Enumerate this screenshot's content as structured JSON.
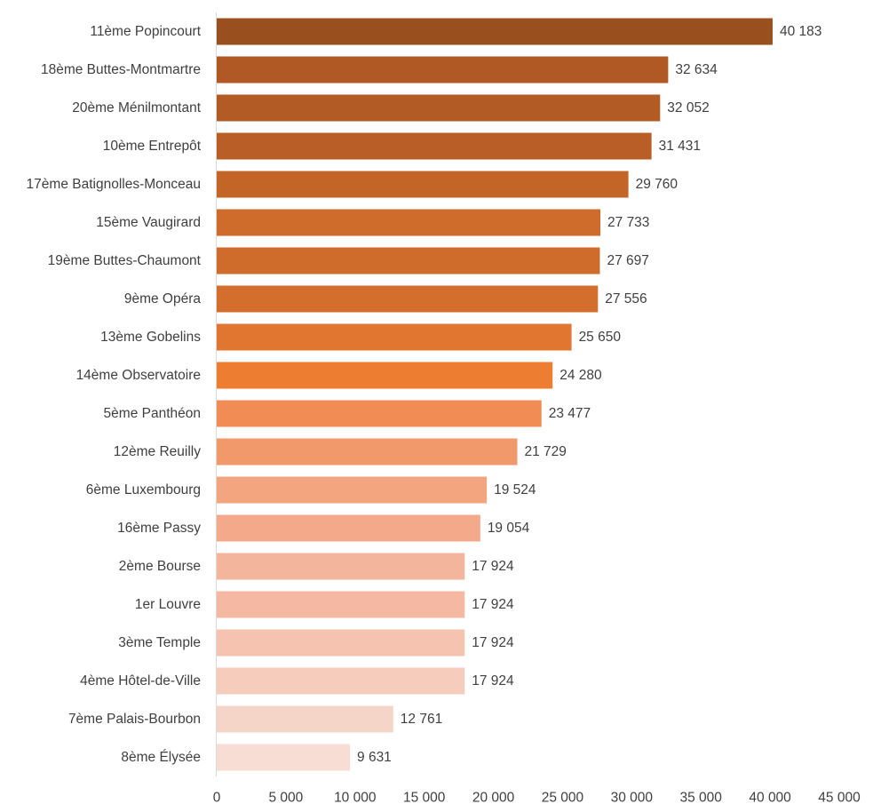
{
  "chart_data": {
    "type": "bar",
    "orientation": "horizontal",
    "title": "",
    "xlabel": "",
    "ylabel": "",
    "xlim": [
      0,
      45000
    ],
    "x_ticks": [
      0,
      5000,
      10000,
      15000,
      20000,
      25000,
      30000,
      35000,
      40000,
      45000
    ],
    "x_tick_labels": [
      "0",
      "5 000",
      "10 000",
      "15 000",
      "20 000",
      "25 000",
      "30 000",
      "35 000",
      "40 000",
      "45 000"
    ],
    "grid": false,
    "legend": "none",
    "categories": [
      "11ème Popincourt",
      "18ème Buttes-Montmartre",
      "20ème Ménilmontant",
      "10ème Entrepôt",
      "17ème Batignolles-Monceau",
      "15ème Vaugirard",
      "19ème Buttes-Chaumont",
      "9ème Opéra",
      "13ème Gobelins",
      "14ème Observatoire",
      "5ème Panthéon",
      "12ème Reuilly",
      "6ème Luxembourg",
      "16ème Passy",
      "2ème Bourse",
      "1er Louvre",
      "3ème Temple",
      "4ème Hôtel-de-Ville",
      "7ème Palais-Bourbon",
      "8ème Élysée"
    ],
    "values": [
      40183,
      32634,
      32052,
      31431,
      29760,
      27733,
      27697,
      27556,
      25650,
      24280,
      23477,
      21729,
      19524,
      19054,
      17924,
      17924,
      17924,
      17924,
      12761,
      9631
    ],
    "value_labels": [
      "40 183",
      "32 634",
      "32 052",
      "31 431",
      "29 760",
      "27 733",
      "27 697",
      "27 556",
      "25 650",
      "24 280",
      "23 477",
      "21 729",
      "19 524",
      "19 054",
      "17 924",
      "17 924",
      "17 924",
      "17 924",
      "12 761",
      "9 631"
    ],
    "colors": [
      "#9a4f1e",
      "#b05924",
      "#b35b25",
      "#b85e26",
      "#c46528",
      "#cf6b2b",
      "#d06c2b",
      "#d46e2c",
      "#e17630",
      "#ed7d31",
      "#f08c54",
      "#f2996b",
      "#f3a580",
      "#f3a98a",
      "#f4b59d",
      "#f5b8a2",
      "#f5c3b0",
      "#f6ccbc",
      "#f6d5c9",
      "#f7ddd3"
    ],
    "axis_color": "#d9d9d9"
  }
}
